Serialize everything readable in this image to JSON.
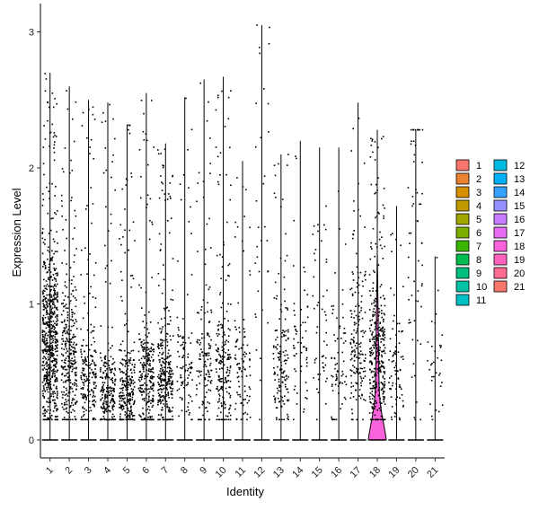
{
  "chart_data": {
    "type": "violin",
    "xlabel": "Identity",
    "ylabel": "Expression Level",
    "ylim": [
      -0.12,
      3.15
    ],
    "y_ticks": [
      0,
      1,
      2,
      3
    ],
    "categories": [
      "1",
      "2",
      "3",
      "4",
      "5",
      "6",
      "7",
      "8",
      "9",
      "10",
      "11",
      "12",
      "13",
      "14",
      "15",
      "16",
      "17",
      "18",
      "19",
      "20",
      "21"
    ],
    "category_colors": [
      "#F8766D",
      "#EA8331",
      "#D89000",
      "#C09B00",
      "#A3A500",
      "#7CAE00",
      "#39B600",
      "#00BB4E",
      "#00BF7D",
      "#00C1A3",
      "#00BFC4",
      "#00BAE0",
      "#00B0F6",
      "#35A2FF",
      "#9590FF",
      "#C77CFF",
      "#E76BF3",
      "#FA62DB",
      "#FF62BC",
      "#FF6C91",
      "#F8766D"
    ],
    "max_expression": [
      2.7,
      2.6,
      2.5,
      2.48,
      2.32,
      2.55,
      2.18,
      2.52,
      2.65,
      2.67,
      2.05,
      3.05,
      2.1,
      2.2,
      2.15,
      2.15,
      2.48,
      2.28,
      1.72,
      2.28,
      1.35
    ],
    "fraction_expressing": [
      0.72,
      0.34,
      0.22,
      0.25,
      0.3,
      0.28,
      0.33,
      0.1,
      0.14,
      0.22,
      0.1,
      0.03,
      0.16,
      0.06,
      0.05,
      0.07,
      0.18,
      0.4,
      0.08,
      0.06,
      0.03
    ],
    "typical_expression": [
      0.7,
      0.6,
      0.45,
      0.35,
      0.35,
      0.45,
      0.45,
      0.5,
      0.55,
      0.55,
      0.5,
      1.8,
      0.6,
      0.7,
      0.9,
      0.55,
      0.65,
      0.6,
      0.5,
      1.5,
      0.5
    ],
    "violin_visible_for": "18",
    "legend": {
      "position": "right",
      "columns": [
        [
          "1",
          "2",
          "3",
          "4",
          "5",
          "6",
          "7",
          "8",
          "9",
          "10",
          "11"
        ],
        [
          "12",
          "13",
          "14",
          "15",
          "16",
          "17",
          "18",
          "19",
          "20",
          "21"
        ]
      ]
    }
  }
}
